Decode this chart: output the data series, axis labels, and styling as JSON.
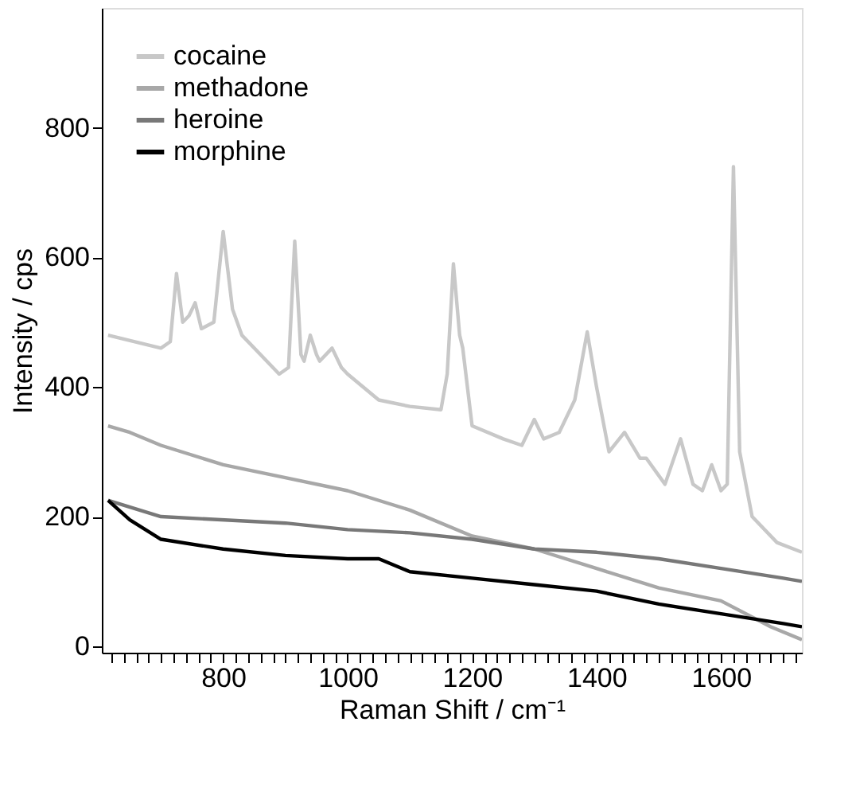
{
  "chart_data": {
    "type": "line",
    "xlabel": "Raman Shift / cm⁻¹",
    "ylabel": "Intensity / cps",
    "xlim": [
      605,
      1730
    ],
    "ylim": [
      -10,
      985
    ],
    "xticks": [
      {
        "value": 620,
        "label": null
      },
      {
        "value": 640,
        "label": null
      },
      {
        "value": 660,
        "label": null
      },
      {
        "value": 680,
        "label": null
      },
      {
        "value": 700,
        "label": null
      },
      {
        "value": 720,
        "label": null
      },
      {
        "value": 740,
        "label": null
      },
      {
        "value": 760,
        "label": null
      },
      {
        "value": 780,
        "label": null
      },
      800,
      {
        "value": 820,
        "label": null
      },
      {
        "value": 840,
        "label": null
      },
      {
        "value": 860,
        "label": null
      },
      {
        "value": 880,
        "label": null
      },
      {
        "value": 900,
        "label": null
      },
      {
        "value": 920,
        "label": null
      },
      {
        "value": 940,
        "label": null
      },
      {
        "value": 960,
        "label": null
      },
      {
        "value": 980,
        "label": null
      },
      1000,
      {
        "value": 1020,
        "label": null
      },
      {
        "value": 1040,
        "label": null
      },
      {
        "value": 1060,
        "label": null
      },
      {
        "value": 1080,
        "label": null
      },
      {
        "value": 1100,
        "label": null
      },
      {
        "value": 1120,
        "label": null
      },
      {
        "value": 1140,
        "label": null
      },
      {
        "value": 1160,
        "label": null
      },
      {
        "value": 1180,
        "label": null
      },
      1200,
      {
        "value": 1220,
        "label": null
      },
      {
        "value": 1240,
        "label": null
      },
      {
        "value": 1260,
        "label": null
      },
      {
        "value": 1280,
        "label": null
      },
      {
        "value": 1300,
        "label": null
      },
      {
        "value": 1320,
        "label": null
      },
      {
        "value": 1340,
        "label": null
      },
      {
        "value": 1360,
        "label": null
      },
      {
        "value": 1380,
        "label": null
      },
      1400,
      {
        "value": 1420,
        "label": null
      },
      {
        "value": 1440,
        "label": null
      },
      {
        "value": 1460,
        "label": null
      },
      {
        "value": 1480,
        "label": null
      },
      {
        "value": 1500,
        "label": null
      },
      {
        "value": 1520,
        "label": null
      },
      {
        "value": 1540,
        "label": null
      },
      {
        "value": 1560,
        "label": null
      },
      {
        "value": 1580,
        "label": null
      },
      1600,
      {
        "value": 1620,
        "label": null
      },
      {
        "value": 1640,
        "label": null
      },
      {
        "value": 1660,
        "label": null
      },
      {
        "value": 1680,
        "label": null
      },
      {
        "value": 1700,
        "label": null
      },
      {
        "value": 1720,
        "label": null
      }
    ],
    "yticks": [
      0,
      200,
      400,
      600,
      800
    ],
    "grid": false,
    "legend": "top left",
    "line_style": "solid",
    "marker": "none",
    "series": [
      {
        "name": "cocaine",
        "color": "#c8c8c8",
        "x": [
          615,
          700,
          715,
          725,
          735,
          745,
          755,
          765,
          785,
          800,
          815,
          830,
          860,
          890,
          905,
          915,
          925,
          930,
          940,
          950,
          955,
          975,
          990,
          1000,
          1050,
          1100,
          1150,
          1160,
          1170,
          1180,
          1185,
          1200,
          1250,
          1280,
          1300,
          1315,
          1340,
          1365,
          1385,
          1400,
          1420,
          1445,
          1470,
          1480,
          1510,
          1535,
          1555,
          1570,
          1585,
          1600,
          1610,
          1620,
          1630,
          1650,
          1690,
          1730
        ],
        "values": [
          480,
          460,
          470,
          575,
          500,
          510,
          530,
          490,
          500,
          640,
          520,
          480,
          450,
          420,
          430,
          625,
          450,
          440,
          480,
          450,
          440,
          460,
          430,
          420,
          380,
          370,
          365,
          420,
          590,
          480,
          460,
          340,
          320,
          310,
          350,
          320,
          330,
          380,
          485,
          400,
          300,
          330,
          290,
          290,
          250,
          320,
          250,
          240,
          280,
          240,
          250,
          740,
          300,
          200,
          160,
          145
        ]
      },
      {
        "name": "methadone",
        "color": "#a8a8a8",
        "x": [
          615,
          650,
          700,
          800,
          900,
          1000,
          1100,
          1200,
          1300,
          1400,
          1500,
          1600,
          1680,
          1730
        ],
        "values": [
          340,
          330,
          310,
          280,
          260,
          240,
          210,
          170,
          150,
          120,
          90,
          70,
          30,
          10
        ]
      },
      {
        "name": "heroine",
        "color": "#787878",
        "x": [
          615,
          700,
          900,
          1000,
          1100,
          1200,
          1300,
          1400,
          1500,
          1600,
          1700,
          1730
        ],
        "values": [
          225,
          200,
          190,
          180,
          175,
          165,
          150,
          145,
          135,
          120,
          105,
          100
        ]
      },
      {
        "name": "morphine",
        "color": "#000000",
        "x": [
          615,
          650,
          700,
          800,
          900,
          1000,
          1050,
          1100,
          1200,
          1300,
          1400,
          1500,
          1600,
          1700,
          1730
        ],
        "values": [
          225,
          195,
          165,
          150,
          140,
          135,
          135,
          115,
          105,
          95,
          85,
          65,
          50,
          35,
          30
        ]
      }
    ]
  }
}
